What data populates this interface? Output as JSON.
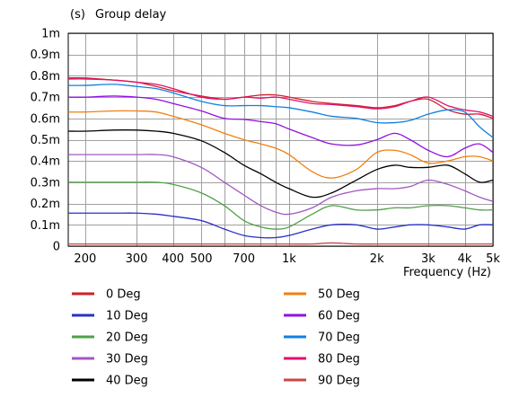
{
  "chart_data": {
    "type": "line",
    "title": "Group delay",
    "y_unit_label": "(s)",
    "xlabel": "Frequency  (Hz)",
    "x_scale": "log",
    "xlim": [
      175,
      5000
    ],
    "ylim": [
      0,
      0.001
    ],
    "grid": true,
    "x_major_ticks": [
      {
        "v": 200,
        "label": "200"
      },
      {
        "v": 300,
        "label": "300"
      },
      {
        "v": 400,
        "label": "400"
      },
      {
        "v": 500,
        "label": "500"
      },
      {
        "v": 700,
        "label": "700"
      },
      {
        "v": 1000,
        "label": "1k"
      },
      {
        "v": 2000,
        "label": "2k"
      },
      {
        "v": 3000,
        "label": "3k"
      },
      {
        "v": 4000,
        "label": "4k"
      },
      {
        "v": 5000,
        "label": "5k"
      }
    ],
    "x_minor_ticks": [
      600,
      800,
      900
    ],
    "y_ticks": [
      {
        "v": 0,
        "label": "0"
      },
      {
        "v": 0.0001,
        "label": "0.1m"
      },
      {
        "v": 0.0002,
        "label": "0.2m"
      },
      {
        "v": 0.0003,
        "label": "0.3m"
      },
      {
        "v": 0.0004,
        "label": "0.4m"
      },
      {
        "v": 0.0005,
        "label": "0.5m"
      },
      {
        "v": 0.0006,
        "label": "0.6m"
      },
      {
        "v": 0.0007,
        "label": "0.7m"
      },
      {
        "v": 0.0008,
        "label": "0.8m"
      },
      {
        "v": 0.0009,
        "label": "0.9m"
      },
      {
        "v": 0.001,
        "label": "1m"
      }
    ],
    "x": [
      175,
      200,
      250,
      300,
      350,
      400,
      500,
      600,
      700,
      800,
      900,
      1000,
      1200,
      1400,
      1700,
      2000,
      2300,
      2600,
      3000,
      3500,
      4000,
      4500,
      5000
    ],
    "series": [
      {
        "name": "0 Deg",
        "color": "#d0202a",
        "values": [
          0.00079,
          0.00079,
          0.00078,
          0.00077,
          0.00075,
          0.00073,
          0.000705,
          0.00069,
          0.0007,
          0.00071,
          0.00071,
          0.0007,
          0.00068,
          0.00067,
          0.00066,
          0.00065,
          0.00066,
          0.00068,
          0.00069,
          0.00064,
          0.00062,
          0.00062,
          0.0006
        ]
      },
      {
        "name": "10 Deg",
        "color": "#2830c8",
        "values": [
          0.000155,
          0.000155,
          0.000155,
          0.000155,
          0.00015,
          0.00014,
          0.00012,
          8e-05,
          5e-05,
          4e-05,
          4e-05,
          5e-05,
          8e-05,
          0.0001,
          0.0001,
          8e-05,
          9e-05,
          0.0001,
          0.0001,
          9e-05,
          8e-05,
          0.0001,
          0.0001
        ]
      },
      {
        "name": "20 Deg",
        "color": "#50a048",
        "values": [
          0.0003,
          0.0003,
          0.0003,
          0.0003,
          0.0003,
          0.00029,
          0.00025,
          0.00019,
          0.00012,
          9e-05,
          8e-05,
          9e-05,
          0.00015,
          0.00019,
          0.00017,
          0.00017,
          0.00018,
          0.00018,
          0.00019,
          0.00019,
          0.00018,
          0.00017,
          0.00017
        ]
      },
      {
        "name": "30 Deg",
        "color": "#a058c0",
        "values": [
          0.00043,
          0.00043,
          0.00043,
          0.00043,
          0.00043,
          0.00042,
          0.00037,
          0.0003,
          0.00024,
          0.00019,
          0.00016,
          0.00015,
          0.00018,
          0.00023,
          0.00026,
          0.00027,
          0.00027,
          0.00028,
          0.00031,
          0.00029,
          0.00026,
          0.00023,
          0.00021
        ]
      },
      {
        "name": "40 Deg",
        "color": "#000000",
        "values": [
          0.00054,
          0.00054,
          0.000545,
          0.000545,
          0.00054,
          0.00053,
          0.000495,
          0.00044,
          0.00038,
          0.00034,
          0.0003,
          0.00027,
          0.00023,
          0.00025,
          0.00031,
          0.00036,
          0.00038,
          0.00037,
          0.00037,
          0.00038,
          0.00034,
          0.0003,
          0.00031
        ]
      },
      {
        "name": "50 Deg",
        "color": "#f08010",
        "values": [
          0.00063,
          0.00063,
          0.000635,
          0.000635,
          0.00063,
          0.00061,
          0.00057,
          0.00053,
          0.0005,
          0.00048,
          0.00046,
          0.00043,
          0.00035,
          0.00032,
          0.00036,
          0.00044,
          0.00045,
          0.00043,
          0.00039,
          0.0004,
          0.00042,
          0.00042,
          0.0004
        ]
      },
      {
        "name": "60 Deg",
        "color": "#9010e0",
        "values": [
          0.0007,
          0.0007,
          0.000705,
          0.0007,
          0.00069,
          0.00067,
          0.000635,
          0.0006,
          0.000595,
          0.000585,
          0.000575,
          0.00055,
          0.00051,
          0.00048,
          0.000475,
          0.0005,
          0.00053,
          0.0005,
          0.00045,
          0.00042,
          0.00046,
          0.00048,
          0.00044
        ]
      },
      {
        "name": "70 Deg",
        "color": "#1080e0",
        "values": [
          0.000755,
          0.000755,
          0.00076,
          0.00075,
          0.00074,
          0.00072,
          0.00068,
          0.00066,
          0.00066,
          0.00066,
          0.000655,
          0.00065,
          0.00063,
          0.00061,
          0.0006,
          0.00058,
          0.00058,
          0.00059,
          0.00062,
          0.00064,
          0.00063,
          0.00056,
          0.00051
        ]
      },
      {
        "name": "80 Deg",
        "color": "#e0106a",
        "values": [
          0.000785,
          0.000785,
          0.00078,
          0.00077,
          0.00076,
          0.00074,
          0.0007,
          0.00069,
          0.0007,
          0.000695,
          0.0007,
          0.00069,
          0.00067,
          0.000665,
          0.000655,
          0.000645,
          0.000655,
          0.00068,
          0.0007,
          0.00066,
          0.00064,
          0.00063,
          0.00061
        ]
      },
      {
        "name": "90 Deg",
        "color": "#c84848",
        "values": [
          1e-05,
          1e-05,
          1e-05,
          1e-05,
          1e-05,
          1e-05,
          1e-05,
          1e-05,
          1e-05,
          1e-05,
          1e-05,
          1e-05,
          1e-05,
          1.5e-05,
          1e-05,
          1e-05,
          1e-05,
          1e-05,
          1e-05,
          1e-05,
          1e-05,
          1e-05,
          1e-05
        ]
      }
    ],
    "legend_placement": "bottom, two columns"
  }
}
